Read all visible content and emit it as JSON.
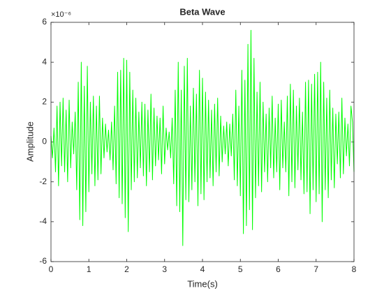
{
  "chart_data": {
    "type": "line",
    "title": "Beta Wave",
    "x_label": "Time(s)",
    "y_label": "Amplitude",
    "y_exponent_label": "×10⁻⁶",
    "x": [
      0,
      0.04,
      0.08,
      0.12,
      0.16,
      0.2,
      0.24,
      0.28,
      0.32,
      0.36,
      0.4,
      0.44,
      0.48,
      0.52,
      0.56,
      0.6,
      0.64,
      0.68,
      0.72,
      0.76,
      0.8,
      0.84,
      0.88,
      0.92,
      0.96,
      1,
      1.04,
      1.08,
      1.12,
      1.16,
      1.2,
      1.24,
      1.28,
      1.32,
      1.36,
      1.4,
      1.44,
      1.48,
      1.52,
      1.56,
      1.6,
      1.64,
      1.68,
      1.72,
      1.76,
      1.8,
      1.84,
      1.88,
      1.92,
      1.96,
      2,
      2.04,
      2.08,
      2.12,
      2.16,
      2.2,
      2.24,
      2.28,
      2.32,
      2.36,
      2.4,
      2.44,
      2.48,
      2.52,
      2.56,
      2.6,
      2.64,
      2.68,
      2.72,
      2.76,
      2.8,
      2.84,
      2.88,
      2.92,
      2.96,
      3,
      3.04,
      3.08,
      3.12,
      3.16,
      3.2,
      3.24,
      3.28,
      3.32,
      3.36,
      3.4,
      3.44,
      3.48,
      3.52,
      3.56,
      3.6,
      3.64,
      3.68,
      3.72,
      3.76,
      3.8,
      3.84,
      3.88,
      3.92,
      3.96,
      4,
      4.04,
      4.08,
      4.12,
      4.16,
      4.2,
      4.24,
      4.28,
      4.32,
      4.36,
      4.4,
      4.44,
      4.48,
      4.52,
      4.56,
      4.6,
      4.64,
      4.68,
      4.72,
      4.76,
      4.8,
      4.84,
      4.88,
      4.92,
      4.96,
      5,
      5.04,
      5.08,
      5.12,
      5.16,
      5.2,
      5.24,
      5.28,
      5.32,
      5.36,
      5.4,
      5.44,
      5.48,
      5.52,
      5.56,
      5.6,
      5.64,
      5.68,
      5.72,
      5.76,
      5.8,
      5.84,
      5.88,
      5.92,
      5.96,
      6,
      6.04,
      6.08,
      6.12,
      6.16,
      6.2,
      6.24,
      6.28,
      6.32,
      6.36,
      6.4,
      6.44,
      6.48,
      6.52,
      6.56,
      6.6,
      6.64,
      6.68,
      6.72,
      6.76,
      6.8,
      6.84,
      6.88,
      6.92,
      6.96,
      7,
      7.04,
      7.08,
      7.12,
      7.16,
      7.2,
      7.24,
      7.28,
      7.32,
      7.36,
      7.4,
      7.44,
      7.48,
      7.52,
      7.56,
      7.6,
      7.64,
      7.68,
      7.72,
      7.76,
      7.8,
      7.84,
      7.88,
      7.92,
      7.96,
      8
    ],
    "series": [
      {
        "color": "#00ff00",
        "values": [
          0.3,
          -0.8,
          0.7,
          -1.5,
          1.8,
          -2.2,
          2,
          -1.2,
          2.2,
          -1.5,
          1.6,
          -2,
          2.1,
          -1.3,
          1,
          -0.6,
          1.5,
          -2.4,
          3,
          -3.9,
          4,
          -4.2,
          2.8,
          -3.5,
          3.8,
          -2.5,
          2,
          -1.6,
          2.3,
          -2.2,
          1.8,
          -1.9,
          2.3,
          -1.6,
          1.2,
          -0.8,
          0.9,
          -0.5,
          0.6,
          -0.9,
          1,
          -1.4,
          1.8,
          -2.1,
          3.5,
          -2.8,
          3.6,
          -3.1,
          4.2,
          -3.8,
          4.1,
          -4.5,
          3.5,
          -2.4,
          2.6,
          -2,
          2.2,
          -1.8,
          1.5,
          -1.3,
          2,
          -1.7,
          1.9,
          -2.2,
          1.6,
          -1.5,
          2.4,
          -1.9,
          1.7,
          -1.2,
          1.3,
          -0.9,
          1.2,
          -1.6,
          1.8,
          -1.1,
          0.7,
          -0.4,
          0.5,
          -0.8,
          1.2,
          -2.1,
          2.6,
          -3.2,
          4,
          -3.5,
          2.6,
          -5.2,
          3.8,
          -2.9,
          4.2,
          -3,
          1.8,
          -2.4,
          2.7,
          -2,
          2.4,
          -3.2,
          3.6,
          -2.6,
          3.2,
          -2.9,
          2.5,
          -2,
          2.1,
          -1.8,
          1.6,
          -2.2,
          1.9,
          -1.5,
          2.2,
          -1.7,
          1.3,
          -1,
          0.8,
          -0.6,
          1,
          -1.2,
          0.9,
          -0.7,
          1.4,
          -1.9,
          2.6,
          -2.2,
          1.8,
          -2.7,
          3.6,
          -4.6,
          3.1,
          -4.2,
          4.9,
          -3.4,
          5.6,
          -4.4,
          4.2,
          -2.8,
          2.5,
          -2.2,
          3,
          -2.5,
          2,
          -1.5,
          1.4,
          -2,
          1.7,
          -1.3,
          2.3,
          -1.8,
          1.2,
          -1.5,
          1.9,
          -2.4,
          2.1,
          -1.3,
          1,
          -1.5,
          2.3,
          -2.7,
          2.9,
          -2,
          2.6,
          -2.3,
          1.8,
          -1.4,
          2.2,
          -1.9,
          1.5,
          -2.6,
          3,
          -2.5,
          3.1,
          -3.6,
          2.9,
          -2.4,
          3.4,
          -3,
          3.5,
          -2.6,
          4,
          -4,
          3,
          -2.4,
          2.2,
          -2.8,
          2.6,
          -1.9,
          1.7,
          -2.3,
          1.4,
          -1.1,
          1.5,
          -1.8,
          2.2,
          -1.6,
          1.2,
          -0.7,
          0.9,
          -1.2,
          1.8,
          1,
          -1.5
        ]
      }
    ],
    "xlim": [
      0,
      8
    ],
    "xticks": [
      0,
      1,
      2,
      3,
      4,
      5,
      6,
      7,
      8
    ],
    "ylim": [
      -6,
      6
    ],
    "yticks": [
      -6,
      -4,
      -2,
      0,
      2,
      4,
      6
    ],
    "grid": false
  }
}
